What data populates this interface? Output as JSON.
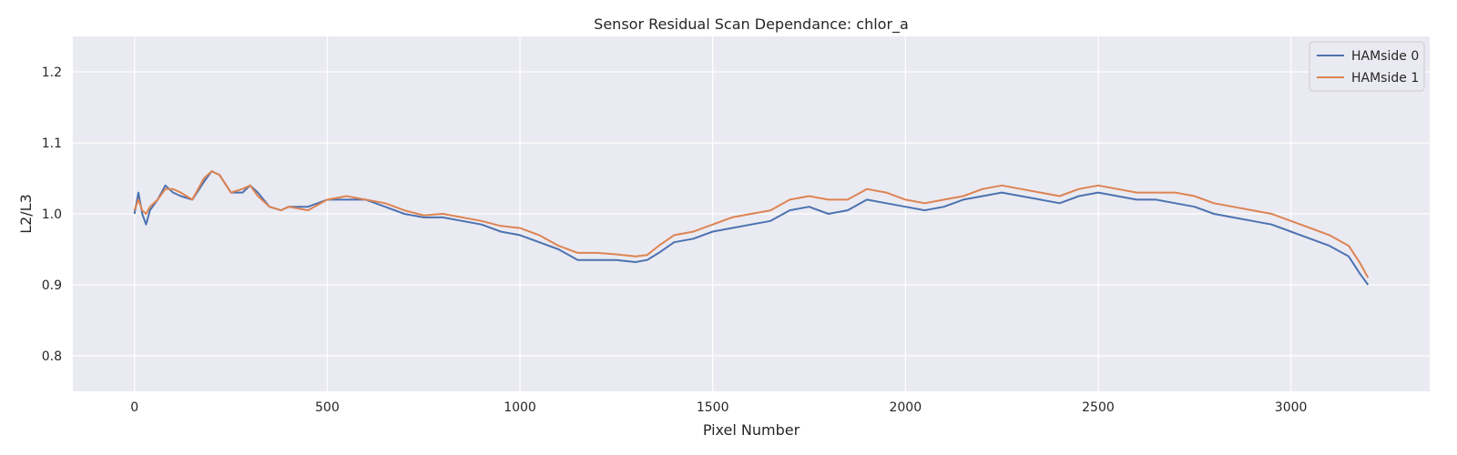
{
  "chart_data": {
    "type": "line",
    "title": "Sensor Residual Scan Dependance: chlor_a",
    "xlabel": "Pixel Number",
    "ylabel": "L2/L3",
    "xlim": [
      -160,
      3360
    ],
    "ylim": [
      0.75,
      1.25
    ],
    "xticks": [
      0,
      500,
      1000,
      1500,
      2000,
      2500,
      3000
    ],
    "yticks": [
      0.8,
      0.9,
      1.0,
      1.1,
      1.2
    ],
    "ytick_labels": [
      "0.8",
      "0.9",
      "1.0",
      "1.1",
      "1.2"
    ],
    "grid": true,
    "legend_position": "top-right",
    "series": [
      {
        "name": "HAMside 0",
        "color": "#4c72b0",
        "x": [
          0,
          10,
          20,
          30,
          40,
          60,
          80,
          100,
          120,
          150,
          180,
          200,
          220,
          250,
          280,
          300,
          320,
          350,
          380,
          400,
          450,
          500,
          550,
          600,
          650,
          700,
          750,
          800,
          850,
          900,
          950,
          1000,
          1050,
          1100,
          1150,
          1200,
          1250,
          1300,
          1330,
          1360,
          1400,
          1450,
          1500,
          1550,
          1600,
          1650,
          1700,
          1750,
          1800,
          1850,
          1900,
          1950,
          2000,
          2050,
          2100,
          2150,
          2200,
          2250,
          2300,
          2350,
          2400,
          2450,
          2500,
          2550,
          2600,
          2650,
          2700,
          2750,
          2800,
          2850,
          2900,
          2950,
          3000,
          3050,
          3100,
          3150,
          3180,
          3200
        ],
        "values": [
          1.0,
          1.03,
          1.0,
          0.985,
          1.005,
          1.02,
          1.04,
          1.03,
          1.025,
          1.02,
          1.045,
          1.06,
          1.055,
          1.03,
          1.03,
          1.04,
          1.03,
          1.01,
          1.005,
          1.01,
          1.01,
          1.02,
          1.02,
          1.02,
          1.01,
          1.0,
          0.995,
          0.995,
          0.99,
          0.985,
          0.975,
          0.97,
          0.96,
          0.95,
          0.935,
          0.935,
          0.935,
          0.932,
          0.935,
          0.945,
          0.96,
          0.965,
          0.975,
          0.98,
          0.985,
          0.99,
          1.005,
          1.01,
          1.0,
          1.005,
          1.02,
          1.015,
          1.01,
          1.005,
          1.01,
          1.02,
          1.025,
          1.03,
          1.025,
          1.02,
          1.015,
          1.025,
          1.03,
          1.025,
          1.02,
          1.02,
          1.015,
          1.01,
          1.0,
          0.995,
          0.99,
          0.985,
          0.975,
          0.965,
          0.955,
          0.94,
          0.915,
          0.9
        ]
      },
      {
        "name": "HAMside 1",
        "color": "#dd8452",
        "x": [
          0,
          10,
          20,
          30,
          40,
          60,
          80,
          100,
          120,
          150,
          180,
          200,
          220,
          250,
          280,
          300,
          320,
          350,
          380,
          400,
          450,
          500,
          550,
          600,
          650,
          700,
          750,
          800,
          850,
          900,
          950,
          1000,
          1050,
          1100,
          1150,
          1200,
          1250,
          1300,
          1330,
          1360,
          1400,
          1450,
          1500,
          1550,
          1600,
          1650,
          1700,
          1750,
          1800,
          1850,
          1900,
          1950,
          2000,
          2050,
          2100,
          2150,
          2200,
          2250,
          2300,
          2350,
          2400,
          2450,
          2500,
          2550,
          2600,
          2650,
          2700,
          2750,
          2800,
          2850,
          2900,
          2950,
          3000,
          3050,
          3100,
          3150,
          3180,
          3200
        ],
        "values": [
          1.005,
          1.02,
          1.005,
          1.0,
          1.01,
          1.02,
          1.035,
          1.035,
          1.03,
          1.02,
          1.05,
          1.06,
          1.055,
          1.03,
          1.035,
          1.04,
          1.025,
          1.01,
          1.005,
          1.01,
          1.005,
          1.02,
          1.025,
          1.02,
          1.015,
          1.005,
          0.998,
          1.0,
          0.995,
          0.99,
          0.983,
          0.98,
          0.97,
          0.955,
          0.945,
          0.945,
          0.943,
          0.94,
          0.942,
          0.955,
          0.97,
          0.975,
          0.985,
          0.995,
          1.0,
          1.005,
          1.02,
          1.025,
          1.02,
          1.02,
          1.035,
          1.03,
          1.02,
          1.015,
          1.02,
          1.025,
          1.035,
          1.04,
          1.035,
          1.03,
          1.025,
          1.035,
          1.04,
          1.035,
          1.03,
          1.03,
          1.03,
          1.025,
          1.015,
          1.01,
          1.005,
          1.0,
          0.99,
          0.98,
          0.97,
          0.955,
          0.93,
          0.91
        ]
      }
    ]
  }
}
